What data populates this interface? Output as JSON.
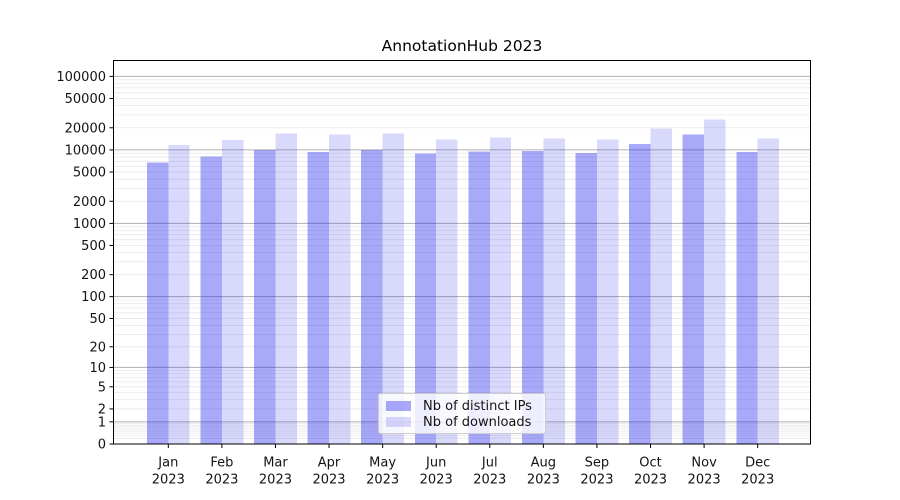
{
  "figure": {
    "background": "#ffffff"
  },
  "chart_data": {
    "type": "bar",
    "title": "AnnotationHub 2023",
    "x": {
      "categories": [
        "Jan",
        "Feb",
        "Mar",
        "Apr",
        "May",
        "Jun",
        "Jul",
        "Aug",
        "Sep",
        "Oct",
        "Nov",
        "Dec"
      ],
      "sublabel": "2023"
    },
    "series": [
      {
        "name": "Nb of distinct IPs",
        "color_hex": "#1e1ef0",
        "alpha": 0.38,
        "values": [
          6700,
          8200,
          10000,
          9400,
          10000,
          9000,
          9500,
          9600,
          9100,
          12100,
          16200,
          9300
        ]
      },
      {
        "name": "Nb of downloads",
        "color_hex": "#1e1ef0",
        "alpha": 0.17,
        "values": [
          11700,
          13700,
          16800,
          16100,
          16800,
          13900,
          14700,
          14300,
          13800,
          19500,
          26000,
          14400
        ]
      }
    ],
    "yscale": "log10(value+1)",
    "ylim": [
      0,
      160000
    ],
    "ytick_values": [
      0,
      1,
      2,
      5,
      10,
      20,
      50,
      100,
      200,
      500,
      1000,
      2000,
      5000,
      10000,
      20000,
      50000,
      100000
    ],
    "ytick_labels": [
      "0",
      "1",
      "2",
      "5",
      "10",
      "20",
      "50",
      "100",
      "200",
      "500",
      "1000",
      "2000",
      "5000",
      "10000",
      "20000",
      "50000",
      "100000"
    ],
    "grid": {
      "major": true,
      "minor": true,
      "major_color": "#b0b0b0",
      "minor_color": "#e8e8e8"
    },
    "legend": {
      "position": "lower-center"
    }
  },
  "colors": {
    "spine": "#000000",
    "text": "#141414"
  }
}
